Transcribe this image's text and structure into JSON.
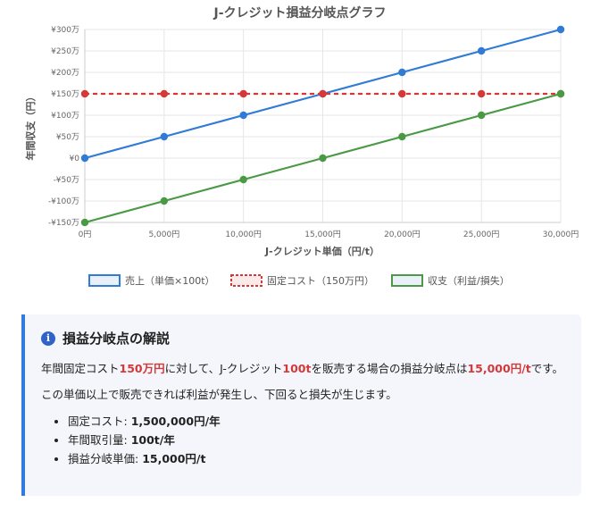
{
  "chart_data": {
    "type": "line",
    "title": "J-クレジット損益分岐点グラフ",
    "xlabel": "J-クレジット単価（円/t）",
    "ylabel": "年間収支（円）",
    "x": [
      0,
      5000,
      10000,
      15000,
      20000,
      25000,
      30000
    ],
    "x_tick_labels": [
      "0円",
      "5,000円",
      "10,000円",
      "15,000円",
      "20,000円",
      "25,000円",
      "30,000円"
    ],
    "xlim": [
      0,
      30000
    ],
    "ylim": [
      -1500000,
      3000000
    ],
    "y_ticks": [
      3000000,
      2500000,
      2000000,
      1500000,
      1000000,
      500000,
      0,
      -500000,
      -1000000,
      -1500000
    ],
    "y_tick_labels": [
      "¥300万",
      "¥250万",
      "¥200万",
      "¥150万",
      "¥100万",
      "¥50万",
      "¥0",
      "-¥50万",
      "-¥100万",
      "-¥150万"
    ],
    "grid": true,
    "legend_position": "bottom",
    "series": [
      {
        "name": "売上（単価×100t）",
        "color": "#2f7bd6",
        "style": "solid",
        "values": [
          0,
          500000,
          1000000,
          1500000,
          2000000,
          2500000,
          3000000
        ]
      },
      {
        "name": "固定コスト（150万円）",
        "color": "#d63838",
        "style": "dashed",
        "values": [
          1500000,
          1500000,
          1500000,
          1500000,
          1500000,
          1500000,
          1500000
        ]
      },
      {
        "name": "収支（利益/損失）",
        "color": "#4a9a45",
        "style": "solid",
        "values": [
          -1500000,
          -1000000,
          -500000,
          0,
          500000,
          1000000,
          1500000
        ]
      }
    ]
  },
  "explanation": {
    "title": "損益分岐点の解説",
    "icon": "info-icon",
    "para1": {
      "t1": "年間固定コスト",
      "h1": "150万円",
      "t2": "に対して、J-クレジット",
      "h2": "100t",
      "t3": "を販売する場合の損益分岐点は",
      "h3": "15,000円/t",
      "t4": "です。"
    },
    "para2": "この単価以上で販売できれば利益が発生し、下回ると損失が生じます。",
    "facts": [
      {
        "label": "固定コスト: ",
        "value": "1,500,000円/年"
      },
      {
        "label": "年間取引量: ",
        "value": "100t/年"
      },
      {
        "label": "損益分岐単価: ",
        "value": "15,000円/t"
      }
    ]
  }
}
